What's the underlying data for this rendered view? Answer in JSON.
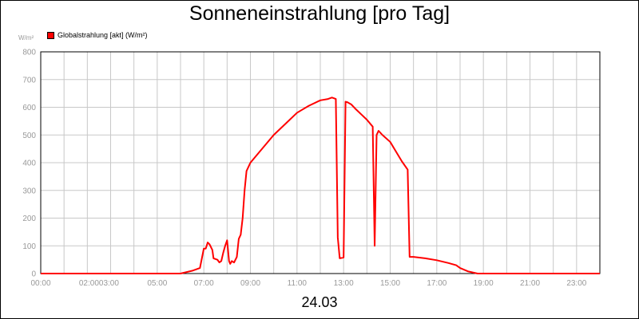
{
  "chart_data": {
    "type": "line",
    "title": "Sonneneinstrahlung [pro Tag]",
    "ylabel": "W/m²",
    "xlabel": "24.03",
    "ylim": [
      0,
      800
    ],
    "xlim_hours": [
      0,
      24
    ],
    "x_tick_labels": [
      "00:00",
      "02:00",
      "03:00",
      "05:00",
      "07:00",
      "09:00",
      "11:00",
      "13:00",
      "15:00",
      "17:00",
      "19:00",
      "21:00",
      "23:00"
    ],
    "x_tick_hours": [
      0,
      2,
      3,
      5,
      7,
      9,
      11,
      13,
      15,
      17,
      19,
      21,
      23
    ],
    "y_tick_labels": [
      "0",
      "100",
      "200",
      "300",
      "400",
      "500",
      "600",
      "700",
      "800"
    ],
    "y_tick_values": [
      0,
      100,
      200,
      300,
      400,
      500,
      600,
      700,
      800
    ],
    "grid": true,
    "legend_position": "top-left",
    "series": [
      {
        "name": "Globalstrahlung [akt] (W/m²)",
        "color": "#ff0000",
        "points": [
          [
            "00:00",
            0
          ],
          [
            "06:00",
            0
          ],
          [
            "06:30",
            10
          ],
          [
            "06:50",
            20
          ],
          [
            "07:00",
            90
          ],
          [
            "07:05",
            90
          ],
          [
            "07:10",
            112
          ],
          [
            "07:15",
            105
          ],
          [
            "07:22",
            85
          ],
          [
            "07:25",
            55
          ],
          [
            "07:35",
            50
          ],
          [
            "07:40",
            40
          ],
          [
            "07:45",
            45
          ],
          [
            "07:50",
            75
          ],
          [
            "07:55",
            100
          ],
          [
            "08:00",
            120
          ],
          [
            "08:05",
            45
          ],
          [
            "08:08",
            35
          ],
          [
            "08:12",
            45
          ],
          [
            "08:18",
            40
          ],
          [
            "08:25",
            60
          ],
          [
            "08:30",
            125
          ],
          [
            "08:35",
            140
          ],
          [
            "08:40",
            200
          ],
          [
            "08:45",
            300
          ],
          [
            "08:50",
            370
          ],
          [
            "09:00",
            400
          ],
          [
            "09:30",
            450
          ],
          [
            "10:00",
            500
          ],
          [
            "10:30",
            540
          ],
          [
            "11:00",
            580
          ],
          [
            "11:30",
            605
          ],
          [
            "12:00",
            625
          ],
          [
            "12:20",
            630
          ],
          [
            "12:30",
            635
          ],
          [
            "12:40",
            630
          ],
          [
            "12:45",
            130
          ],
          [
            "12:50",
            55
          ],
          [
            "13:00",
            58
          ],
          [
            "13:05",
            620
          ],
          [
            "13:10",
            618
          ],
          [
            "13:20",
            610
          ],
          [
            "13:30",
            595
          ],
          [
            "13:45",
            575
          ],
          [
            "14:00",
            555
          ],
          [
            "14:15",
            530
          ],
          [
            "14:20",
            100
          ],
          [
            "14:25",
            500
          ],
          [
            "14:30",
            515
          ],
          [
            "14:40",
            500
          ],
          [
            "15:00",
            475
          ],
          [
            "15:15",
            440
          ],
          [
            "15:30",
            405
          ],
          [
            "15:45",
            375
          ],
          [
            "15:50",
            60
          ],
          [
            "16:00",
            60
          ],
          [
            "16:30",
            55
          ],
          [
            "17:00",
            48
          ],
          [
            "17:30",
            38
          ],
          [
            "17:50",
            30
          ],
          [
            "18:00",
            20
          ],
          [
            "18:20",
            8
          ],
          [
            "18:45",
            0
          ],
          [
            "24:00",
            0
          ]
        ]
      }
    ]
  }
}
